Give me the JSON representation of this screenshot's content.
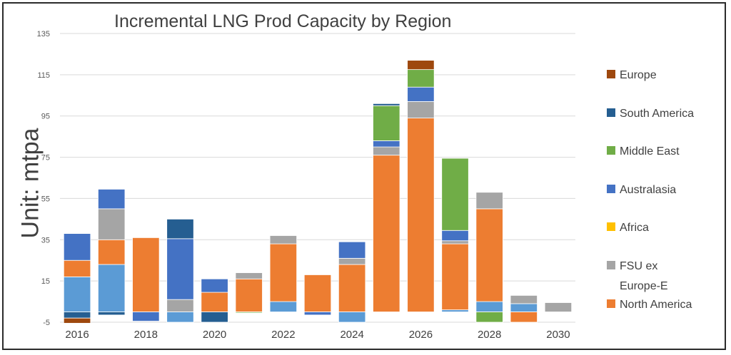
{
  "chart_data": {
    "type": "bar",
    "stacked": true,
    "title": "Incremental LNG Prod Capacity by Region",
    "ylabel": "Unit: mtpa",
    "xlabel": "",
    "ylim": [
      -5,
      135
    ],
    "yticks": [
      -5,
      15,
      35,
      55,
      75,
      95,
      115,
      135
    ],
    "xtick_labels": [
      "2016",
      "2018",
      "2020",
      "2022",
      "2024",
      "2026",
      "2028",
      "2030"
    ],
    "grid": true,
    "legend_position": "right",
    "categories": [
      "2016",
      "2017",
      "2018",
      "2019",
      "2020",
      "2021",
      "2022",
      "2023",
      "2024",
      "2025",
      "2026",
      "2027",
      "2028",
      "2029",
      "2030"
    ],
    "series": [
      {
        "name": "",
        "color": "#5b9bd5",
        "values": [
          17,
          23,
          0,
          0,
          0,
          0,
          5,
          0,
          0,
          0,
          0,
          1,
          5,
          4,
          0
        ]
      },
      {
        "name": "North America",
        "color": "#ed7d31",
        "values": [
          8,
          12,
          36,
          0,
          9.5,
          16,
          28,
          18,
          23,
          76,
          94,
          32,
          45,
          0,
          0
        ]
      },
      {
        "name": "FSU ex Europe-E",
        "color": "#a5a5a5",
        "values": [
          0,
          15,
          0,
          6,
          0,
          3,
          4,
          0,
          3,
          4,
          8,
          1.5,
          8,
          4,
          4.5
        ]
      },
      {
        "name": "Africa",
        "color": "#ffc000",
        "values": [
          0,
          0,
          0,
          0,
          0,
          0,
          0,
          0,
          0,
          0,
          0,
          0,
          0,
          0,
          0
        ]
      },
      {
        "name": "Australasia",
        "color": "#4472c4",
        "values": [
          13,
          9.5,
          0,
          29.5,
          6.5,
          0,
          0,
          0,
          8,
          3,
          7,
          5,
          0,
          0,
          0
        ]
      },
      {
        "name": "Middle East",
        "color": "#70ad47",
        "values": [
          0,
          0,
          0,
          0,
          0,
          0,
          0,
          0,
          0,
          17,
          8.5,
          35,
          0,
          0,
          0
        ]
      },
      {
        "name": "South America",
        "color": "#255e91",
        "values": [
          0,
          0,
          0,
          9.5,
          0,
          0,
          0,
          0,
          0,
          1,
          0,
          0,
          0,
          0,
          0
        ]
      },
      {
        "name": "Europe",
        "color": "#9e480e",
        "values": [
          0,
          0,
          0,
          0,
          0,
          0,
          0,
          0,
          0,
          0,
          4.5,
          0,
          0,
          0,
          0
        ]
      }
    ],
    "negative_series": [
      {
        "name": "South America",
        "color": "#255e91",
        "values": [
          -3,
          -1.5,
          0,
          0,
          -5,
          0,
          0,
          0,
          0,
          0,
          0,
          0,
          0,
          0,
          0
        ]
      },
      {
        "name": "Europe",
        "color": "#9e480e",
        "values": [
          -2.5,
          0,
          0,
          0,
          0,
          0,
          0,
          0,
          0,
          0,
          0,
          0,
          0,
          0,
          0
        ]
      },
      {
        "name": "",
        "color": "#5b9bd5",
        "values": [
          0,
          0,
          0,
          -5,
          0,
          0,
          0,
          0,
          -5,
          0,
          0,
          0,
          0,
          0,
          0
        ]
      },
      {
        "name": "Australasia",
        "color": "#4472c4",
        "values": [
          0,
          0,
          -4.5,
          0,
          0,
          0,
          0,
          -1.5,
          0,
          0,
          0,
          0,
          0,
          0,
          0
        ]
      },
      {
        "name": "Middle East",
        "color": "#70ad47",
        "values": [
          0,
          0,
          0,
          0,
          0,
          -0.5,
          0,
          0,
          0,
          0,
          0,
          0,
          -5,
          0,
          0
        ]
      },
      {
        "name": "North America",
        "color": "#ed7d31",
        "values": [
          0,
          0,
          0,
          0,
          0,
          0,
          0,
          0,
          0,
          0,
          0,
          0,
          0,
          -5,
          0
        ]
      }
    ],
    "legend": [
      {
        "label": "Europe",
        "color": "#9e480e"
      },
      {
        "label": "South America",
        "color": "#255e91"
      },
      {
        "label": "Middle East",
        "color": "#70ad47"
      },
      {
        "label": "Australasia",
        "color": "#4472c4"
      },
      {
        "label": "Africa",
        "color": "#ffc000"
      },
      {
        "label": "FSU ex Europe-E",
        "color": "#a5a5a5"
      },
      {
        "label": "North America",
        "color": "#ed7d31"
      }
    ]
  }
}
